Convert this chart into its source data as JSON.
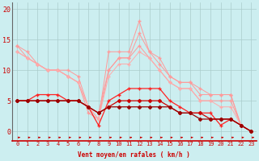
{
  "xlabel": "Vent moyen/en rafales ( km/h )",
  "bg_color": "#cceef0",
  "grid_color": "#aacccc",
  "xlim": [
    -0.5,
    23.5
  ],
  "ylim": [
    -1.5,
    21
  ],
  "yticks": [
    0,
    5,
    10,
    15,
    20
  ],
  "xticks": [
    0,
    1,
    2,
    3,
    4,
    5,
    6,
    7,
    8,
    9,
    10,
    11,
    12,
    13,
    14,
    15,
    16,
    17,
    18,
    19,
    20,
    21,
    22,
    23
  ],
  "series": [
    {
      "x": [
        0,
        1,
        2,
        3,
        4,
        5,
        6,
        7,
        8,
        9,
        10,
        11,
        12,
        13,
        14,
        15,
        16,
        17,
        18,
        19,
        20,
        21,
        22,
        23
      ],
      "y": [
        14,
        13,
        11,
        10,
        10,
        10,
        9,
        4,
        2,
        13,
        13,
        13,
        18,
        13,
        12,
        9,
        8,
        8,
        7,
        6,
        6,
        6,
        1,
        0
      ],
      "color": "#ff9999",
      "lw": 0.7,
      "marker": "+",
      "ms": 3.0,
      "zorder": 2
    },
    {
      "x": [
        0,
        1,
        2,
        3,
        4,
        5,
        6,
        7,
        8,
        9,
        10,
        11,
        12,
        13,
        14,
        15,
        16,
        17,
        18,
        19,
        20,
        21,
        22,
        23
      ],
      "y": [
        13,
        12,
        11,
        10,
        10,
        9,
        8,
        3,
        2,
        10,
        12,
        12,
        16,
        13,
        11,
        9,
        8,
        8,
        6,
        6,
        6,
        6,
        1,
        0
      ],
      "color": "#ff9999",
      "lw": 0.7,
      "marker": "+",
      "ms": 3.0,
      "zorder": 2
    },
    {
      "x": [
        0,
        1,
        2,
        3,
        4,
        5,
        6,
        7,
        8,
        9,
        10,
        11,
        12,
        13,
        14,
        15,
        16,
        17,
        18,
        19,
        20,
        21,
        22,
        23
      ],
      "y": [
        14,
        12,
        11,
        10,
        10,
        9,
        8,
        4,
        3,
        10,
        12,
        12,
        14,
        12,
        10,
        8,
        7,
        7,
        5,
        5,
        5,
        5,
        1,
        0
      ],
      "color": "#ff9999",
      "lw": 0.7,
      "marker": "+",
      "ms": 3.0,
      "zorder": 2
    },
    {
      "x": [
        0,
        1,
        2,
        3,
        4,
        5,
        6,
        7,
        8,
        9,
        10,
        11,
        12,
        13,
        14,
        15,
        16,
        17,
        18,
        19,
        20,
        21,
        22,
        23
      ],
      "y": [
        13,
        12,
        11,
        10,
        10,
        9,
        8,
        4,
        2,
        9,
        11,
        11,
        13,
        12,
        10,
        8,
        7,
        7,
        5,
        5,
        4,
        4,
        1,
        0
      ],
      "color": "#ffaaaa",
      "lw": 0.7,
      "marker": "+",
      "ms": 3.0,
      "zorder": 2
    },
    {
      "x": [
        0,
        1,
        2,
        3,
        4,
        5,
        6,
        7,
        8,
        9,
        10,
        11,
        12,
        13,
        14,
        15,
        16,
        17,
        18,
        19,
        20,
        21,
        22,
        23
      ],
      "y": [
        5,
        5,
        6,
        6,
        6,
        5,
        5,
        4,
        1,
        5,
        6,
        7,
        7,
        7,
        7,
        5,
        4,
        3,
        3,
        3,
        1,
        2,
        1,
        0
      ],
      "color": "#ff2222",
      "lw": 0.9,
      "marker": "+",
      "ms": 3.5,
      "zorder": 3
    },
    {
      "x": [
        0,
        1,
        2,
        3,
        4,
        5,
        6,
        7,
        8,
        9,
        10,
        11,
        12,
        13,
        14,
        15,
        16,
        17,
        18,
        19,
        20,
        21,
        22,
        23
      ],
      "y": [
        5,
        5,
        5,
        5,
        5,
        5,
        5,
        4,
        3,
        4,
        5,
        5,
        5,
        5,
        5,
        4,
        3,
        3,
        3,
        2,
        2,
        2,
        1,
        0
      ],
      "color": "#cc0000",
      "lw": 0.9,
      "marker": "D",
      "ms": 2.0,
      "zorder": 4
    },
    {
      "x": [
        0,
        1,
        2,
        3,
        4,
        5,
        6,
        7,
        8,
        9,
        10,
        11,
        12,
        13,
        14,
        15,
        16,
        17,
        18,
        19,
        20,
        21,
        22,
        23
      ],
      "y": [
        5,
        5,
        5,
        5,
        5,
        5,
        5,
        4,
        3,
        4,
        4,
        4,
        4,
        4,
        4,
        4,
        3,
        3,
        2,
        2,
        2,
        2,
        1,
        0
      ],
      "color": "#990000",
      "lw": 0.9,
      "marker": "D",
      "ms": 2.0,
      "zorder": 4
    }
  ],
  "arrow_color": "#cc0000",
  "axis_label_fontsize": 5.5,
  "tick_fontsize": 5
}
